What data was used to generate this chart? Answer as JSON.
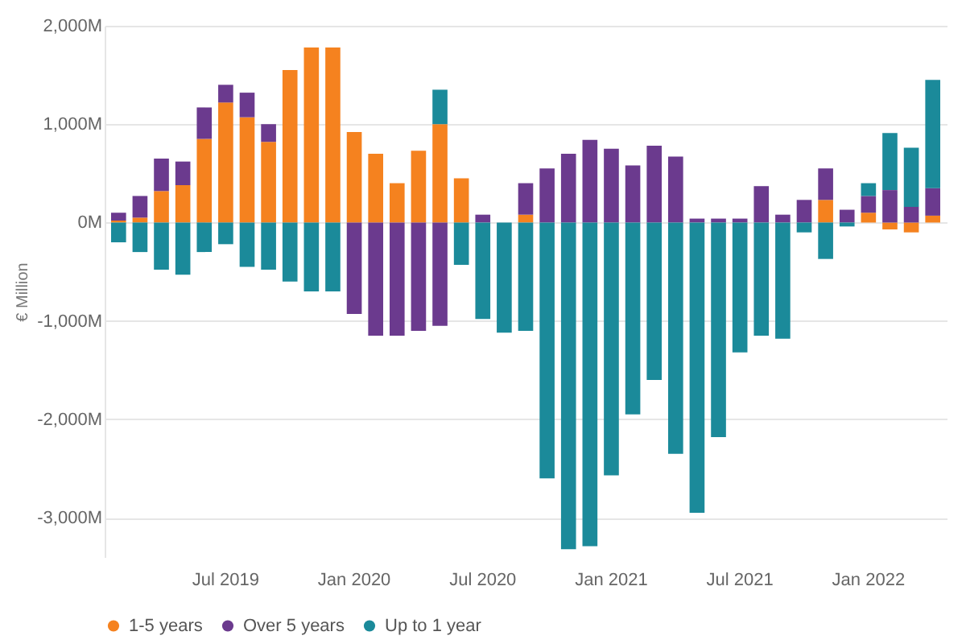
{
  "chart_data": {
    "type": "bar",
    "stacked": true,
    "ylabel": "€ Million",
    "categories": [
      null,
      null,
      null,
      null,
      null,
      "Jul 2019",
      null,
      null,
      null,
      null,
      null,
      "Jan 2020",
      null,
      null,
      null,
      null,
      null,
      "Jul 2020",
      null,
      null,
      null,
      null,
      null,
      "Jan 2021",
      null,
      null,
      null,
      null,
      null,
      "Jul 2021",
      null,
      null,
      null,
      null,
      null,
      "Jan 2022",
      null,
      null,
      null
    ],
    "ylim": [
      -3400,
      2000
    ],
    "yticks": [
      {
        "value": -3000,
        "label": "-3,000M"
      },
      {
        "value": -2000,
        "label": "-2,000M"
      },
      {
        "value": -1000,
        "label": "-1,000M"
      },
      {
        "value": 0,
        "label": "0M"
      },
      {
        "value": 1000,
        "label": "1,000M"
      },
      {
        "value": 2000,
        "label": "2,000M"
      }
    ],
    "grid": "y",
    "legend": "bottom",
    "series": [
      {
        "name": "1-5 years",
        "color": "#f5821f",
        "values": [
          20,
          50,
          320,
          380,
          850,
          1220,
          1070,
          820,
          1550,
          1780,
          1780,
          920,
          700,
          400,
          730,
          1000,
          450,
          null,
          null,
          80,
          null,
          null,
          null,
          null,
          null,
          null,
          null,
          null,
          null,
          null,
          null,
          null,
          null,
          230,
          null,
          100,
          -70,
          -100,
          70
        ]
      },
      {
        "name": "Over 5 years",
        "color": "#6b3a8e",
        "values": [
          80,
          220,
          330,
          240,
          320,
          180,
          250,
          180,
          null,
          null,
          null,
          -930,
          -1150,
          -1150,
          -1100,
          -1050,
          null,
          80,
          null,
          320,
          550,
          700,
          840,
          750,
          580,
          780,
          670,
          40,
          40,
          40,
          370,
          80,
          230,
          320,
          130,
          170,
          330,
          160,
          280
        ]
      },
      {
        "name": "Up to 1 year",
        "color": "#1b8a9a",
        "values": [
          -200,
          -300,
          -480,
          -530,
          -300,
          -220,
          -450,
          -480,
          -600,
          -700,
          -700,
          null,
          null,
          null,
          null,
          350,
          -430,
          -980,
          -1120,
          -1100,
          -2600,
          -3320,
          -3290,
          -2570,
          -1950,
          -1600,
          -2350,
          -2950,
          -2180,
          -1320,
          -1150,
          -1180,
          -100,
          -370,
          -40,
          130,
          580,
          600,
          1100
        ]
      }
    ]
  }
}
